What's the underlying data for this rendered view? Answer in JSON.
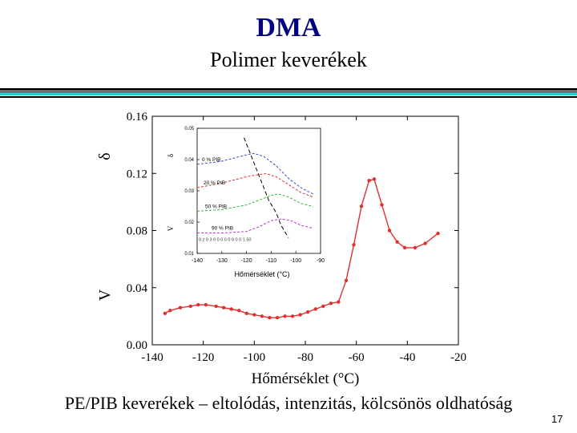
{
  "title": "DMA",
  "subtitle": "Polimer keverékek",
  "caption": "PE/PIB keverékek – eltolódás, intenzitás, kölcsönös oldhatóság",
  "page_number": "17",
  "colors": {
    "title": "#000080",
    "accent_bar": "#2ec8c8",
    "main_series": "#e03030",
    "inset_0": "#1f3fbf",
    "inset_20": "#d02020",
    "inset_50": "#20b020",
    "inset_90": "#b020c0"
  },
  "chart_data": [
    {
      "type": "line",
      "title": "",
      "xlabel": "Hőmérséklet (°C)",
      "ylabel": "δ",
      "ylabel_garbled": "V",
      "xlim": [
        -140,
        -20
      ],
      "ylim": [
        0.0,
        0.16
      ],
      "x_ticks": [
        "-140",
        "-120",
        "-100",
        "-80",
        "-60",
        "-40",
        "-20"
      ],
      "y_ticks": [
        "0.00",
        "0.04",
        "0.08",
        "0.12",
        "0.16"
      ],
      "series": [
        {
          "name": "PE/PIB",
          "x": [
            -135,
            -133,
            -129,
            -125,
            -122,
            -119,
            -115,
            -112,
            -109,
            -106,
            -103,
            -100,
            -97,
            -94,
            -91,
            -88,
            -85,
            -82,
            -79,
            -76,
            -73,
            -70,
            -67,
            -64,
            -61,
            -58,
            -55,
            -53,
            -50,
            -47,
            -44,
            -41,
            -37,
            -33,
            -28
          ],
          "y": [
            0.022,
            0.024,
            0.026,
            0.027,
            0.028,
            0.028,
            0.027,
            0.026,
            0.025,
            0.024,
            0.022,
            0.021,
            0.02,
            0.019,
            0.019,
            0.02,
            0.02,
            0.021,
            0.023,
            0.025,
            0.027,
            0.029,
            0.03,
            0.045,
            0.07,
            0.097,
            0.115,
            0.116,
            0.098,
            0.08,
            0.072,
            0.068,
            0.068,
            0.071,
            0.078
          ]
        }
      ]
    },
    {
      "type": "line",
      "title": "",
      "xlabel": "Hőmérséklet (°C)",
      "ylabel": "δ",
      "xlim": [
        -140,
        -90
      ],
      "ylim": [
        0.01,
        0.05
      ],
      "x_ticks": [
        "-140",
        "-130",
        "-120",
        "-110",
        "-100",
        "-90"
      ],
      "y_ticks": [
        "0.01",
        "0.02",
        "0.03",
        "0.04",
        "0.05"
      ],
      "series": [
        {
          "name": "0 % PIB",
          "x": [
            -140,
            -130,
            -125,
            -120,
            -117,
            -113,
            -108,
            -103,
            -98,
            -93
          ],
          "y": [
            0.0385,
            0.0395,
            0.0405,
            0.0415,
            0.042,
            0.041,
            0.038,
            0.034,
            0.031,
            0.029
          ]
        },
        {
          "name": "20 % PIB",
          "x": [
            -140,
            -130,
            -120,
            -115,
            -112,
            -108,
            -103,
            -98,
            -93
          ],
          "y": [
            0.031,
            0.0325,
            0.0345,
            0.0352,
            0.0355,
            0.0345,
            0.032,
            0.0295,
            0.028
          ]
        },
        {
          "name": "50 % PIB",
          "x": [
            -140,
            -130,
            -120,
            -115,
            -110,
            -107,
            -103,
            -98,
            -93
          ],
          "y": [
            0.0235,
            0.024,
            0.0255,
            0.027,
            0.0285,
            0.029,
            0.028,
            0.026,
            0.025
          ]
        },
        {
          "name": "90 % PIB",
          "x": [
            -140,
            -130,
            -120,
            -115,
            -110,
            -106,
            -102,
            -98,
            -93
          ],
          "y": [
            0.0165,
            0.0165,
            0.017,
            0.0185,
            0.0205,
            0.021,
            0.0205,
            0.019,
            0.018
          ]
        },
        {
          "name": "peak shift",
          "x": [
            -121,
            -119,
            -117,
            -115,
            -113,
            -111,
            -108,
            -106,
            -103
          ],
          "y": [
            0.047,
            0.043,
            0.039,
            0.035,
            0.031,
            0.027,
            0.023,
            0.019,
            0.015
          ]
        }
      ],
      "garbled_label": "V",
      "garbled_line": "0 z 0 3 0 0 0 0 0 0 0 0 1.50"
    }
  ]
}
